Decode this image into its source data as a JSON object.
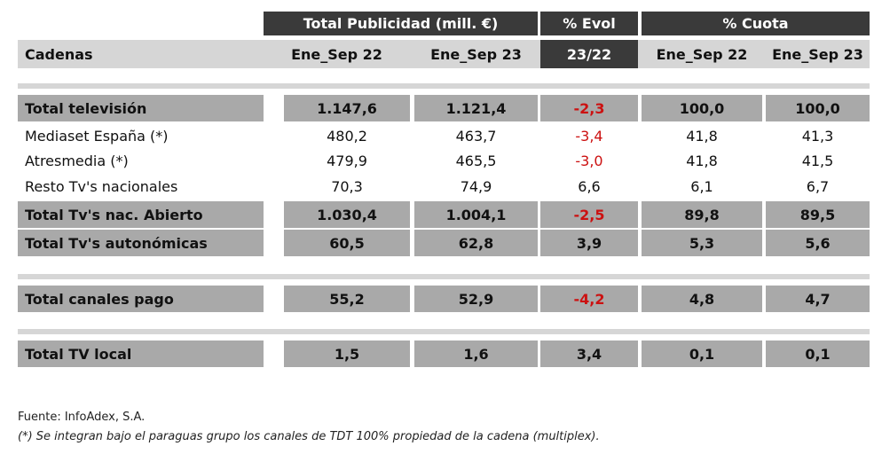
{
  "header": {
    "group_publicidad": "Total Publicidad (mill. €)",
    "group_evol_top": "% Evol",
    "group_evol_bottom": "23/22",
    "group_cuota": "% Cuota",
    "col_cadenas": "Cadenas",
    "col_pub_22": "Ene_Sep 22",
    "col_pub_23": "Ene_Sep 23",
    "col_cuota_22": "Ene_Sep 22",
    "col_cuota_23": "Ene_Sep 23"
  },
  "rows": [
    {
      "name": "Total televisión",
      "pub22": "1.147,6",
      "pub23": "1.121,4",
      "evol": "-2,3",
      "cuota22": "100,0",
      "cuota23": "100,0"
    },
    {
      "name": "Mediaset España (*)",
      "pub22": "480,2",
      "pub23": "463,7",
      "evol": "-3,4",
      "cuota22": "41,8",
      "cuota23": "41,3"
    },
    {
      "name": "Atresmedia (*)",
      "pub22": "479,9",
      "pub23": "465,5",
      "evol": "-3,0",
      "cuota22": "41,8",
      "cuota23": "41,5"
    },
    {
      "name": "Resto Tv's nacionales",
      "pub22": "70,3",
      "pub23": "74,9",
      "evol": "6,6",
      "cuota22": "6,1",
      "cuota23": "6,7"
    },
    {
      "name": "Total Tv's nac. Abierto",
      "pub22": "1.030,4",
      "pub23": "1.004,1",
      "evol": "-2,5",
      "cuota22": "89,8",
      "cuota23": "89,5"
    },
    {
      "name": "Total Tv's autonómicas",
      "pub22": "60,5",
      "pub23": "62,8",
      "evol": "3,9",
      "cuota22": "5,3",
      "cuota23": "5,6"
    },
    {
      "name": "Total canales pago",
      "pub22": "55,2",
      "pub23": "52,9",
      "evol": "-4,2",
      "cuota22": "4,8",
      "cuota23": "4,7"
    },
    {
      "name": "Total TV local",
      "pub22": "1,5",
      "pub23": "1,6",
      "evol": "3,4",
      "cuota22": "0,1",
      "cuota23": "0,1"
    }
  ],
  "notes": {
    "source": "Fuente: InfoAdex, S.A.",
    "footnote": "(*) Se integran bajo el paraguas grupo los canales de TDT 100% propiedad de la cadena (multiplex)."
  },
  "colors": {
    "dark_header": "#3a3a3a",
    "light_header": "#d6d6d6",
    "total_row": "#a9a9a9",
    "negative": "#cc1111"
  }
}
